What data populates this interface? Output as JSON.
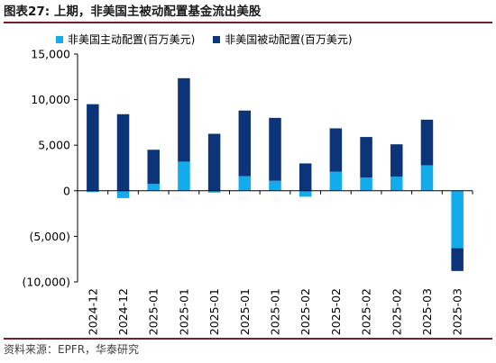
{
  "title": "图表27:  上期，非美国主被动配置基金流出美股",
  "source": "资料来源：EPFR，华泰研究",
  "colors": {
    "active": "#12abec",
    "passive": "#0c3479",
    "axis": "#000000"
  },
  "chart_data": {
    "type": "bar",
    "stacked": true,
    "categories": [
      "2024-12",
      "2024-12",
      "2025-01",
      "2025-01",
      "2025-01",
      "2025-01",
      "2025-01",
      "2025-02",
      "2025-02",
      "2025-02",
      "2025-02",
      "2025-03",
      "2025-03"
    ],
    "series": [
      {
        "name": "非美国主动配置(百万美元)",
        "color": "#12abec",
        "values": [
          -150,
          -800,
          750,
          3200,
          -200,
          1600,
          1100,
          -650,
          2100,
          1450,
          1550,
          2800,
          -6300
        ]
      },
      {
        "name": "非美国被动配置(百万美元)",
        "color": "#0c3479",
        "values": [
          9500,
          8400,
          3750,
          9150,
          6250,
          7200,
          6900,
          3000,
          4750,
          4450,
          3550,
          5000,
          -2500
        ]
      }
    ],
    "ylim": [
      -10000,
      15000
    ],
    "yticks": [
      15000,
      10000,
      5000,
      0,
      -5000,
      -10000
    ],
    "ytick_labels": [
      "15,000",
      "10,000",
      "5,000",
      "0",
      "(5,000)",
      "(10,000)"
    ],
    "legend_position": "top",
    "grid": false
  }
}
